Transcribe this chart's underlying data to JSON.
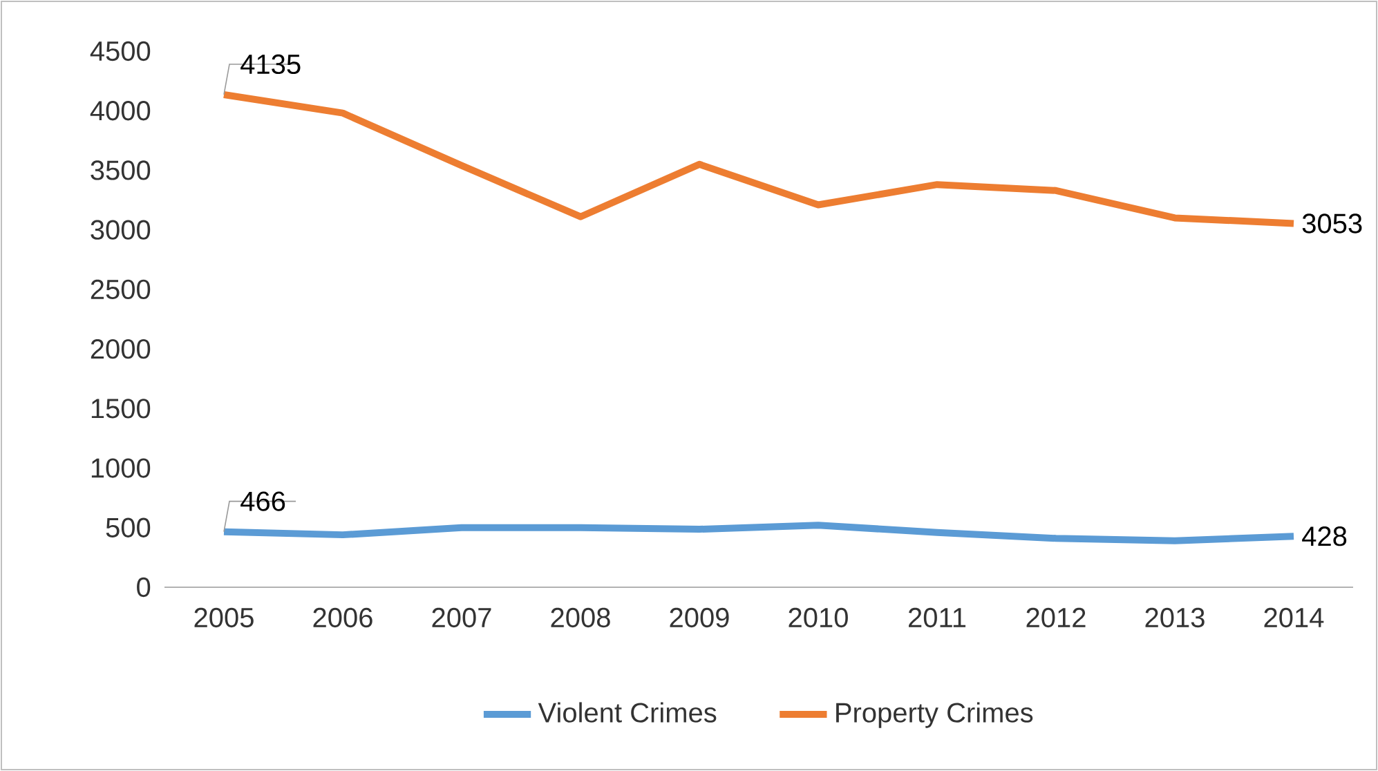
{
  "chart_data": {
    "type": "line",
    "categories": [
      "2005",
      "2006",
      "2007",
      "2008",
      "2009",
      "2010",
      "2011",
      "2012",
      "2013",
      "2014"
    ],
    "series": [
      {
        "name": "Violent Crimes",
        "color": "#5b9bd5",
        "values": [
          466,
          440,
          500,
          500,
          487,
          520,
          460,
          410,
          390,
          428
        ],
        "value_labels": [
          "466",
          null,
          null,
          null,
          null,
          null,
          null,
          null,
          null,
          "428"
        ]
      },
      {
        "name": "Property Crimes",
        "color": "#ed7d31",
        "values": [
          4135,
          3980,
          3540,
          3110,
          3550,
          3210,
          3380,
          3330,
          3100,
          3053
        ],
        "value_labels": [
          "4135",
          null,
          null,
          null,
          null,
          null,
          null,
          null,
          null,
          "3053"
        ]
      }
    ],
    "ylim": [
      0,
      4500
    ],
    "yticks": [
      0,
      500,
      1000,
      1500,
      2000,
      2500,
      3000,
      3500,
      4000,
      4500
    ],
    "grid": false,
    "legend": "bottom",
    "marker": "none",
    "line_style": "solid"
  }
}
